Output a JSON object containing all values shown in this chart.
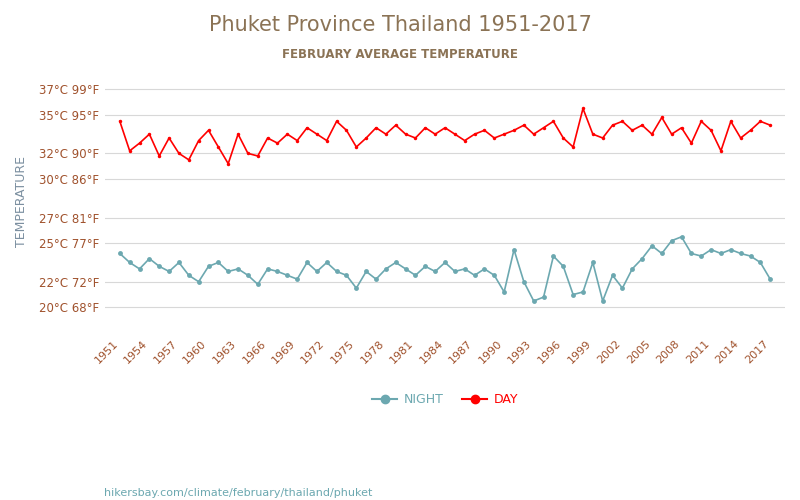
{
  "title": "Phuket Province Thailand 1951-2017",
  "subtitle": "FEBRUARY AVERAGE TEMPERATURE",
  "ylabel": "TEMPERATURE",
  "title_color": "#8B7355",
  "subtitle_color": "#8B7355",
  "ylabel_color": "#7B8FA0",
  "tick_color": "#A0522D",
  "background_color": "#FFFFFF",
  "grid_color": "#D8D8D8",
  "day_color": "#FF0000",
  "night_color": "#6CA8B0",
  "years": [
    1951,
    1952,
    1953,
    1954,
    1955,
    1956,
    1957,
    1958,
    1959,
    1960,
    1961,
    1962,
    1963,
    1964,
    1965,
    1966,
    1967,
    1968,
    1969,
    1970,
    1971,
    1972,
    1973,
    1974,
    1975,
    1976,
    1977,
    1978,
    1979,
    1980,
    1981,
    1982,
    1983,
    1984,
    1985,
    1986,
    1987,
    1988,
    1989,
    1990,
    1991,
    1992,
    1993,
    1994,
    1995,
    1996,
    1997,
    1998,
    1999,
    2000,
    2001,
    2002,
    2003,
    2004,
    2005,
    2006,
    2007,
    2008,
    2009,
    2010,
    2011,
    2012,
    2013,
    2014,
    2015,
    2016,
    2017
  ],
  "day_temps": [
    34.5,
    32.2,
    32.8,
    33.5,
    31.8,
    33.2,
    32.0,
    31.5,
    33.0,
    33.8,
    32.5,
    31.2,
    33.5,
    32.0,
    31.8,
    33.2,
    32.8,
    33.5,
    33.0,
    34.0,
    33.5,
    33.0,
    34.5,
    33.8,
    32.5,
    33.2,
    34.0,
    33.5,
    34.2,
    33.5,
    33.2,
    34.0,
    33.5,
    34.0,
    33.5,
    33.0,
    33.5,
    33.8,
    33.2,
    33.5,
    33.8,
    34.2,
    33.5,
    34.0,
    34.5,
    33.2,
    32.5,
    35.5,
    33.5,
    33.2,
    34.2,
    34.5,
    33.8,
    34.2,
    33.5,
    34.8,
    33.5,
    34.0,
    32.8,
    34.5,
    33.8,
    32.2,
    34.5,
    33.2,
    33.8,
    34.5,
    34.2
  ],
  "night_temps": [
    24.2,
    23.5,
    23.0,
    23.8,
    23.2,
    22.8,
    23.5,
    22.5,
    22.0,
    23.2,
    23.5,
    22.8,
    23.0,
    22.5,
    21.8,
    23.0,
    22.8,
    22.5,
    22.2,
    23.5,
    22.8,
    23.5,
    22.8,
    22.5,
    21.5,
    22.8,
    22.2,
    23.0,
    23.5,
    23.0,
    22.5,
    23.2,
    22.8,
    23.5,
    22.8,
    23.0,
    22.5,
    23.0,
    22.5,
    21.2,
    24.5,
    22.0,
    20.5,
    20.8,
    24.0,
    23.2,
    21.0,
    21.2,
    23.5,
    20.5,
    22.5,
    21.5,
    23.0,
    23.8,
    24.8,
    24.2,
    25.2,
    25.5,
    24.2,
    24.0,
    24.5,
    24.2,
    24.5,
    24.2,
    24.0,
    23.5,
    22.2
  ],
  "yticks_c": [
    20,
    22,
    25,
    27,
    30,
    32,
    35,
    37
  ],
  "yticks_f": [
    68,
    72,
    77,
    81,
    86,
    90,
    95,
    99
  ],
  "xtick_years": [
    1951,
    1954,
    1957,
    1960,
    1963,
    1966,
    1969,
    1972,
    1975,
    1978,
    1981,
    1984,
    1987,
    1990,
    1993,
    1996,
    1999,
    2002,
    2005,
    2008,
    2011,
    2014,
    2017
  ],
  "ymin": 18,
  "ymax": 38.5,
  "watermark": "hikersbay.com/climate/february/thailand/phuket"
}
